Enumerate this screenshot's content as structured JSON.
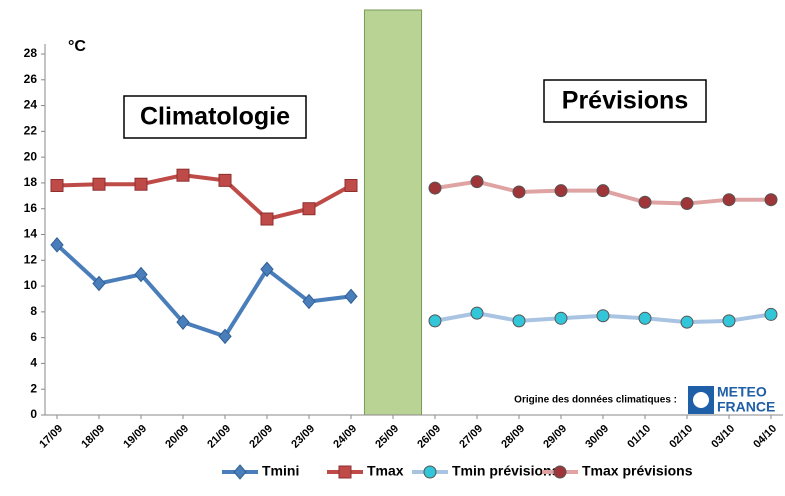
{
  "chart_data": {
    "type": "line",
    "unit_label": "°C",
    "annotations": [
      "Climatologie",
      "Prévisions"
    ],
    "source": "Origine des données climatiques :",
    "logo": [
      "METEO",
      "FRANCE"
    ],
    "categories": [
      "17/09",
      "18/09",
      "19/09",
      "20/09",
      "21/09",
      "22/09",
      "23/09",
      "24/09",
      "25/09",
      "26/09",
      "27/09",
      "28/09",
      "29/09",
      "30/09",
      "01/10",
      "02/10",
      "03/10",
      "04/10"
    ],
    "series": [
      {
        "name": "Tmini",
        "color": "#4a7ebb",
        "marker": "diamond",
        "marker_color": "#4a7ebb",
        "values": [
          13.2,
          10.2,
          10.9,
          7.2,
          6.1,
          11.3,
          8.8,
          9.2,
          null,
          null,
          null,
          null,
          null,
          null,
          null,
          null,
          null,
          null
        ]
      },
      {
        "name": "Tmax",
        "color": "#be4b48",
        "marker": "square",
        "marker_color": "#be4b48",
        "values": [
          17.8,
          17.9,
          17.9,
          18.6,
          18.2,
          15.2,
          16.0,
          17.8,
          null,
          null,
          null,
          null,
          null,
          null,
          null,
          null,
          null,
          null
        ]
      },
      {
        "name": "Tmin prévisions",
        "color": "#a9c4e2",
        "marker": "circle",
        "marker_color": "#33c6d8",
        "values": [
          null,
          null,
          null,
          null,
          null,
          null,
          null,
          null,
          null,
          7.3,
          7.9,
          7.3,
          7.5,
          7.7,
          7.5,
          7.2,
          7.3,
          7.8
        ]
      },
      {
        "name": "Tmax prévisions",
        "color": "#dea3a2",
        "marker": "circle",
        "marker_color": "#9e3538",
        "values": [
          null,
          null,
          null,
          null,
          null,
          null,
          null,
          null,
          null,
          17.6,
          18.1,
          17.3,
          17.4,
          17.4,
          16.5,
          16.4,
          16.7,
          16.7
        ]
      }
    ],
    "ylim": [
      0,
      28
    ],
    "yticks": [
      0,
      2,
      4,
      6,
      8,
      10,
      12,
      14,
      16,
      18,
      20,
      22,
      24,
      26,
      28
    ],
    "grid": false,
    "legend": "bottom",
    "gap_color": "#b9d394"
  }
}
